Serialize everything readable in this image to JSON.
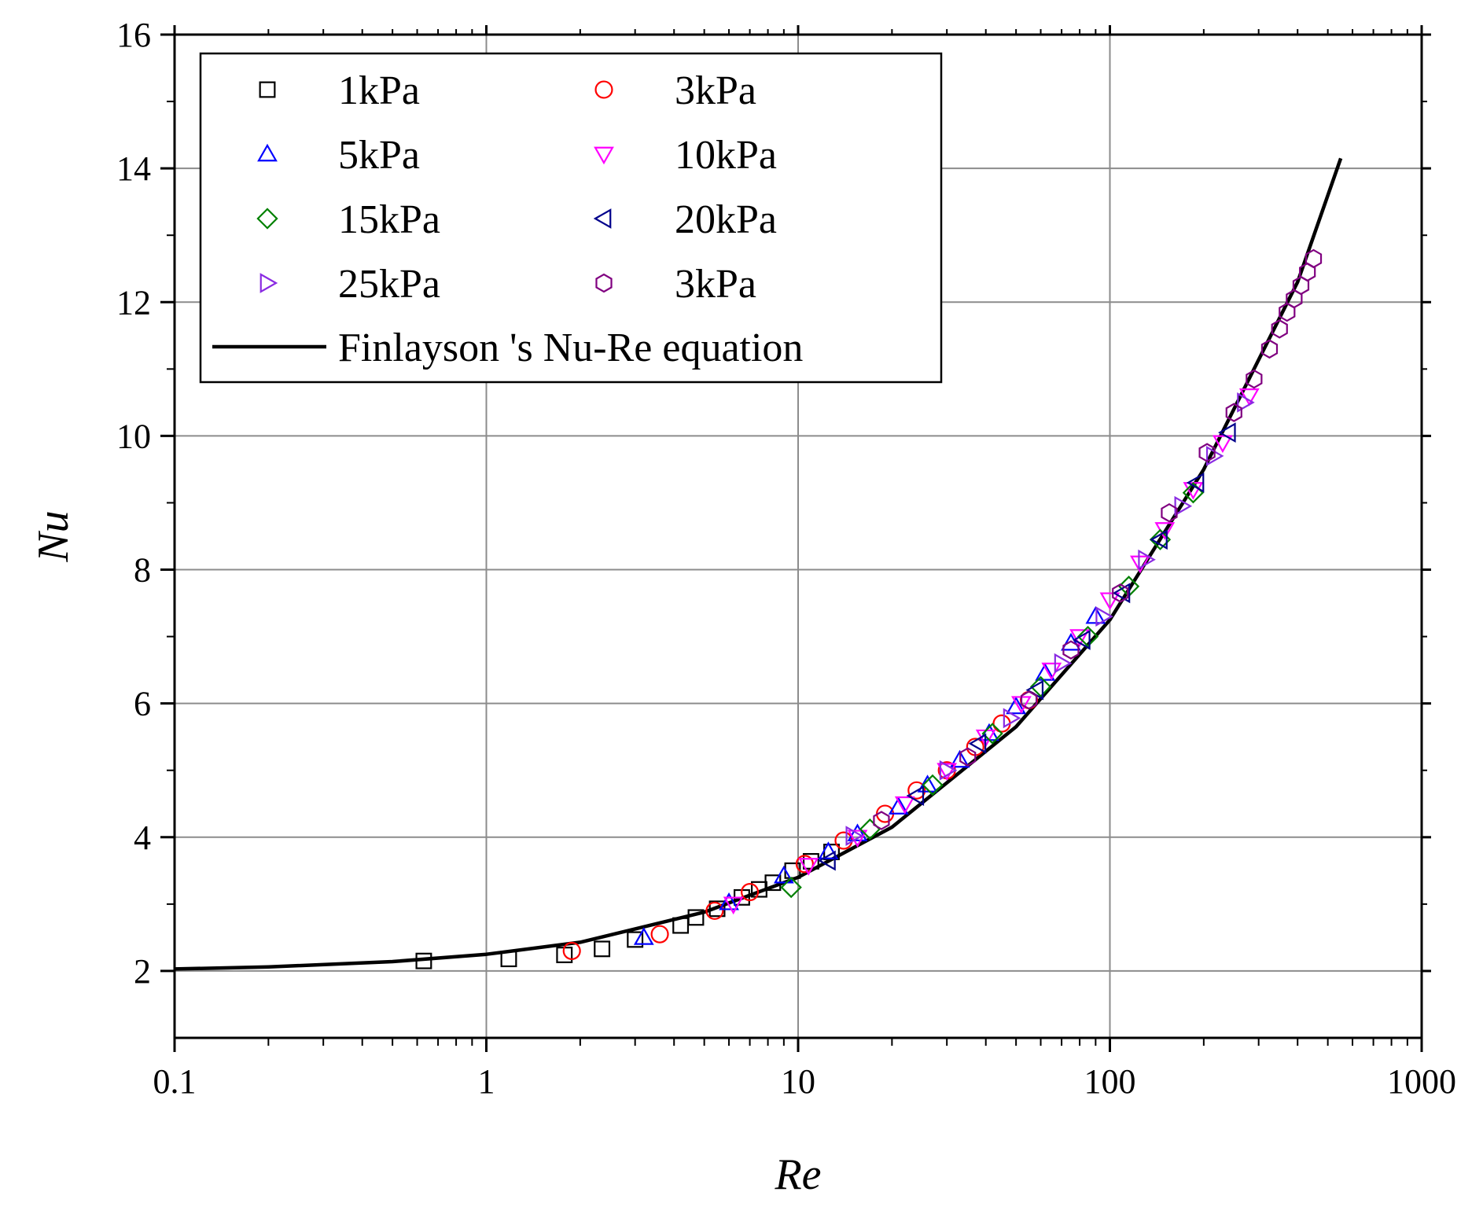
{
  "chart_data": {
    "type": "scatter",
    "title": "",
    "xlabel": "Re",
    "ylabel": "Nu",
    "xscale": "log",
    "xlim": [
      0.1,
      1000
    ],
    "ylim": [
      1,
      16
    ],
    "x_ticks": [
      {
        "value": 0.1,
        "label": "0.1"
      },
      {
        "value": 1,
        "label": "1"
      },
      {
        "value": 10,
        "label": "10"
      },
      {
        "value": 100,
        "label": "100"
      },
      {
        "value": 1000,
        "label": "1000"
      }
    ],
    "y_ticks": [
      {
        "value": 2,
        "label": "2"
      },
      {
        "value": 4,
        "label": "4"
      },
      {
        "value": 6,
        "label": "6"
      },
      {
        "value": 8,
        "label": "8"
      },
      {
        "value": 10,
        "label": "10"
      },
      {
        "value": 12,
        "label": "12"
      },
      {
        "value": 14,
        "label": "14"
      },
      {
        "value": 16,
        "label": "16"
      }
    ],
    "grid": true,
    "legend_position": "top-left",
    "series": [
      {
        "name": "1kPa",
        "marker": "square",
        "color": "#000000",
        "x": [
          0.63,
          1.18,
          1.78,
          2.35,
          3.0,
          4.2,
          4.7,
          5.5,
          6.6,
          7.5,
          8.3,
          9.6,
          11.0,
          12.8
        ],
        "y": [
          2.15,
          2.18,
          2.24,
          2.33,
          2.47,
          2.68,
          2.8,
          2.93,
          3.1,
          3.22,
          3.32,
          3.5,
          3.64,
          3.78
        ]
      },
      {
        "name": "3kPa",
        "marker": "circle",
        "color": "#ff0000",
        "x": [
          1.88,
          3.6,
          5.4,
          7.0,
          10.5,
          14.0,
          19.0,
          24.0,
          30.0,
          37.0,
          45.0,
          55.0
        ],
        "y": [
          2.3,
          2.55,
          2.9,
          3.18,
          3.6,
          3.95,
          4.35,
          4.7,
          5.0,
          5.35,
          5.7,
          6.05
        ]
      },
      {
        "name": "5kPa",
        "marker": "triangle-up",
        "color": "#0000ff",
        "x": [
          3.2,
          6.0,
          9.0,
          12.5,
          15.5,
          21.0,
          26.0,
          33.0,
          41.0,
          50.0,
          62.0,
          75.0,
          90.0
        ],
        "y": [
          2.5,
          3.02,
          3.42,
          3.78,
          4.05,
          4.45,
          4.78,
          5.15,
          5.55,
          5.95,
          6.45,
          6.9,
          7.3
        ]
      },
      {
        "name": "10kPa",
        "marker": "triangle-down",
        "color": "#ff00ff",
        "x": [
          6.2,
          10.8,
          15.5,
          22.0,
          30.0,
          40.0,
          52.0,
          65.0,
          80.0,
          100.0,
          125.0,
          150.0,
          185.0,
          230.0,
          280.0
        ],
        "y": [
          3.0,
          3.58,
          4.0,
          4.5,
          5.0,
          5.5,
          6.0,
          6.5,
          7.0,
          7.55,
          8.1,
          8.6,
          9.2,
          9.9,
          10.6
        ]
      },
      {
        "name": "15kPa",
        "marker": "diamond",
        "color": "#008000",
        "x": [
          9.5,
          17.0,
          27.0,
          42.0,
          60.0,
          85.0,
          115.0,
          145.0,
          185.0
        ],
        "y": [
          3.25,
          4.12,
          4.78,
          5.55,
          6.25,
          7.0,
          7.75,
          8.45,
          9.15
        ]
      },
      {
        "name": "20kPa",
        "marker": "triangle-left",
        "color": "#00008b",
        "x": [
          12.5,
          24.0,
          38.0,
          58.0,
          82.0,
          110.0,
          145.0,
          190.0,
          240.0
        ],
        "y": [
          3.65,
          4.62,
          5.4,
          6.2,
          6.95,
          7.65,
          8.45,
          9.3,
          10.05
        ]
      },
      {
        "name": "25kPa",
        "marker": "triangle-right",
        "color": "#8a2be2",
        "x": [
          15.0,
          30.0,
          48.0,
          70.0,
          95.0,
          130.0,
          170.0,
          215.0,
          270.0
        ],
        "y": [
          4.02,
          5.0,
          5.78,
          6.6,
          7.3,
          8.15,
          8.95,
          9.7,
          10.5
        ]
      },
      {
        "name": "3kPa",
        "marker": "hexagon",
        "color": "#800080",
        "x": [
          18.5,
          35.0,
          55.0,
          75.0,
          108.0,
          155.0,
          205.0,
          250.0,
          290.0,
          325.0,
          350.0,
          370.0,
          390.0,
          410.0,
          430.0,
          450.0
        ],
        "y": [
          4.25,
          5.2,
          6.05,
          6.8,
          7.65,
          8.85,
          9.75,
          10.35,
          10.85,
          11.3,
          11.6,
          11.85,
          12.05,
          12.25,
          12.45,
          12.65
        ]
      },
      {
        "name": "Finlayson 's Nu-Re equation",
        "type": "line",
        "color": "#000000",
        "x": [
          0.1,
          0.2,
          0.5,
          1,
          2,
          5,
          10,
          20,
          50,
          100,
          200,
          400,
          550
        ],
        "y": [
          2.03,
          2.06,
          2.14,
          2.25,
          2.43,
          2.88,
          3.4,
          4.15,
          5.65,
          7.25,
          9.5,
          12.3,
          14.15
        ]
      }
    ]
  }
}
